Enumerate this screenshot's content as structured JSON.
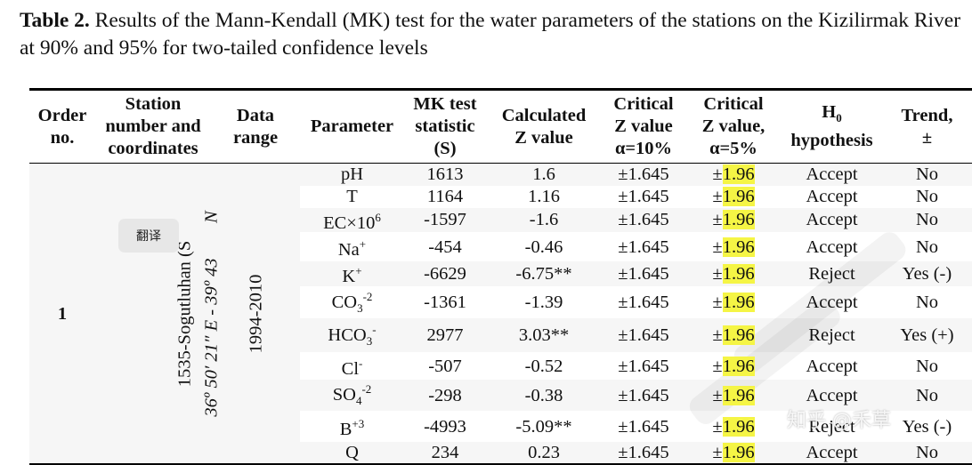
{
  "caption": {
    "label": "Table 2.",
    "text": "Results of the Mann-Kendall (MK) test for the water parameters of the stations on the Kizilirmak River at 90% and 95% for two-tailed confidence levels"
  },
  "headers": {
    "order": [
      "Order",
      "no."
    ],
    "station": [
      "Station",
      "number and",
      "coordinates"
    ],
    "data_range": [
      "Data",
      "range"
    ],
    "parameter": "Parameter",
    "mk": [
      "MK test",
      "statistic",
      "(S)"
    ],
    "calc": [
      "Calculated",
      "Z value"
    ],
    "crit10": [
      "Critical",
      "Z value",
      "α=10%"
    ],
    "crit5": [
      "Critical",
      "Z value,",
      "α=5%"
    ],
    "h0_symbol": "H",
    "h0_sub": "0",
    "h0_word": "hypothesis",
    "trend": [
      "Trend,",
      "±"
    ]
  },
  "group": {
    "order": "1",
    "station_name": "1535-Sogutluhan (S",
    "station_coords": "36º 50′ 21″ E - 39º 43",
    "coord_suffix": "N",
    "data_range": "1994-2010"
  },
  "rows": [
    {
      "param": "pH",
      "s": "1613",
      "z": "1.6",
      "c10": "±1.645",
      "pm": "±",
      "c5": "1.96",
      "h0": "Accept",
      "trend": "No"
    },
    {
      "param": "T",
      "s": "1164",
      "z": "1.16",
      "c10": "±1.645",
      "pm": "±",
      "c5": "1.96",
      "h0": "Accept",
      "trend": "No"
    },
    {
      "param": "EC×10",
      "sup": "6",
      "s": "-1597",
      "z": "-1.6",
      "c10": "±1.645",
      "pm": "±",
      "c5": "1.96",
      "h0": "Accept",
      "trend": "No"
    },
    {
      "param": "Na",
      "sup": "+",
      "s": "-454",
      "z": "-0.46",
      "c10": "±1.645",
      "pm": "±",
      "c5": "1.96",
      "h0": "Accept",
      "trend": "No"
    },
    {
      "param": "K",
      "sup": "+",
      "s": "-6629",
      "z": "-6.75**",
      "c10": "±1.645",
      "pm": "±",
      "c5": "1.96",
      "h0": "Reject",
      "trend": "Yes (-)"
    },
    {
      "param": "CO",
      "sub": "3",
      "sup": "-2",
      "s": "-1361",
      "z": "-1.39",
      "c10": "±1.645",
      "pm": "±",
      "c5": "1.96",
      "h0": "Accept",
      "trend": "No"
    },
    {
      "param": "HCO",
      "sub": "3",
      "sup": "-",
      "s": "2977",
      "z": "3.03**",
      "c10": "±1.645",
      "pm": "±",
      "c5": "1.96",
      "h0": "Reject",
      "trend": "Yes (+)"
    },
    {
      "param": "Cl",
      "sup": "-",
      "s": "-507",
      "z": "-0.52",
      "c10": "±1.645",
      "pm": "±",
      "c5": "1.96",
      "h0": "Accept",
      "trend": "No"
    },
    {
      "param": "SO",
      "sub": "4",
      "sup": "-2",
      "s": "-298",
      "z": "-0.38",
      "c10": "±1.645",
      "pm": "±",
      "c5": "1.96",
      "h0": "Accept",
      "trend": "No"
    },
    {
      "param": "B",
      "sup": "+3",
      "s": "-4993",
      "z": "-5.09**",
      "c10": "±1.645",
      "pm": "±",
      "c5": "1.96",
      "h0": "Reject",
      "trend": "Yes (-)"
    },
    {
      "param": "Q",
      "s": "234",
      "z": "0.23",
      "c10": "±1.645",
      "pm": "±",
      "c5": "1.96",
      "h0": "Accept",
      "trend": "No"
    }
  ],
  "overlay": {
    "translate_label": "翻译",
    "watermark": "知乎 @禾草"
  },
  "colors": {
    "highlight": "#f5f545"
  }
}
